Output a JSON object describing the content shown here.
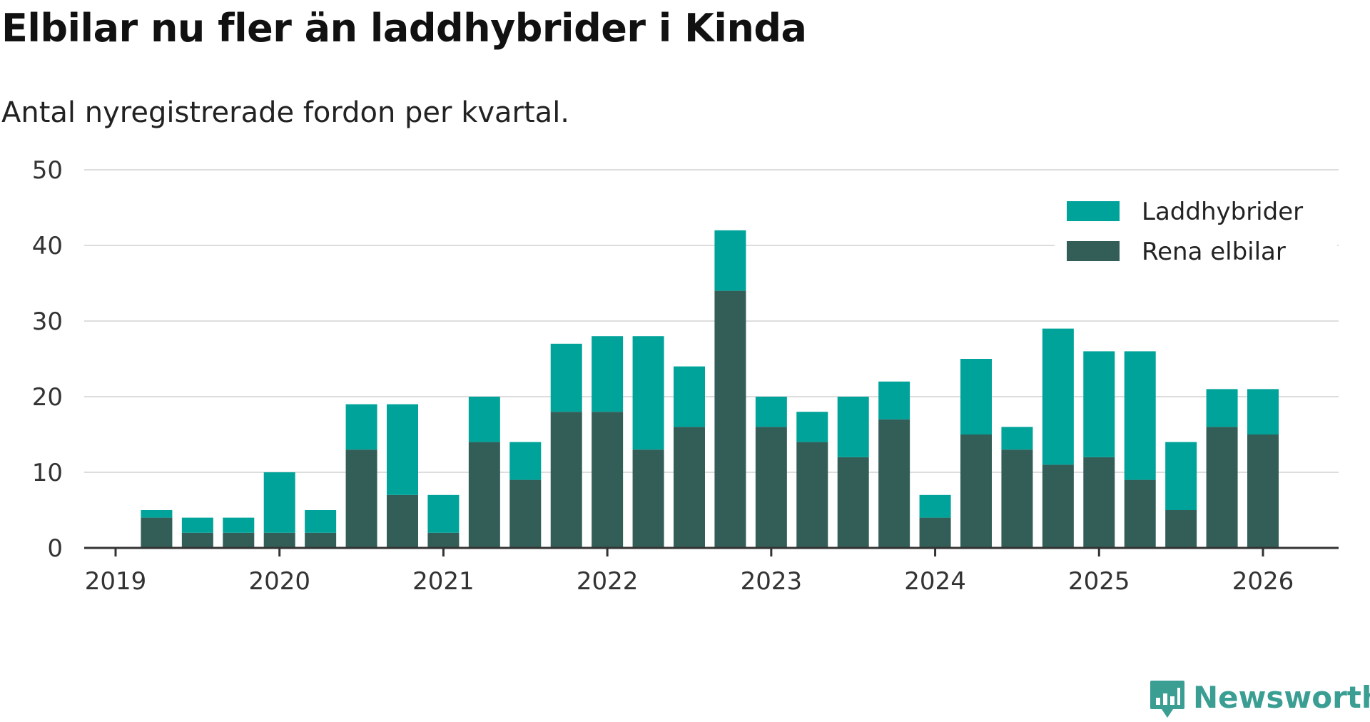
{
  "title": "Elbilar nu fler än laddhybrider i Kinda",
  "subtitle": "Antal nyregistrerade fordon per kvartal.",
  "brand": {
    "name": "Newsworthy",
    "color": "#3a9e93",
    "icon": "newsworthy-logo-icon"
  },
  "colors": {
    "phev": "#00a39a",
    "bev": "#335e58",
    "grid": "#dddddd",
    "axis": "#333333"
  },
  "chart_data": {
    "type": "bar",
    "stacked": true,
    "title": "Elbilar nu fler än laddhybrider i Kinda",
    "subtitle": "Antal nyregistrerade fordon per kvartal.",
    "xlabel": "",
    "ylabel": "",
    "ylim": [
      0,
      50
    ],
    "yticks": [
      0,
      10,
      20,
      30,
      40,
      50
    ],
    "xlim": [
      2019,
      2026.45
    ],
    "xticks": [
      2019,
      2020,
      2021,
      2022,
      2023,
      2024,
      2025,
      2026
    ],
    "xtick_labels": [
      "2019",
      "2020",
      "2021",
      "2022",
      "2023",
      "2024",
      "2025",
      "2026"
    ],
    "legend_position": "top-right",
    "grid": true,
    "x": [
      2019.25,
      2019.5,
      2019.75,
      2020.0,
      2020.25,
      2020.5,
      2020.75,
      2021.0,
      2021.25,
      2021.5,
      2021.75,
      2022.0,
      2022.25,
      2022.5,
      2022.75,
      2023.0,
      2023.25,
      2023.5,
      2023.75,
      2024.0,
      2024.25,
      2024.5,
      2024.75,
      2025.0,
      2025.25,
      2025.5,
      2025.75,
      2026.0
    ],
    "series": [
      {
        "name": "Rena elbilar",
        "key": "bev",
        "values": [
          4,
          2,
          2,
          2,
          2,
          13,
          7,
          2,
          14,
          9,
          18,
          18,
          13,
          16,
          34,
          16,
          14,
          12,
          17,
          4,
          15,
          13,
          11,
          12,
          9,
          5,
          16,
          15
        ]
      },
      {
        "name": "Laddhybrider",
        "key": "phev",
        "values": [
          1,
          2,
          2,
          8,
          3,
          6,
          12,
          5,
          6,
          5,
          9,
          10,
          15,
          8,
          8,
          4,
          4,
          8,
          5,
          3,
          10,
          3,
          18,
          14,
          17,
          9,
          5,
          6
        ]
      }
    ],
    "legend": [
      "Laddhybrider",
      "Rena elbilar"
    ]
  }
}
